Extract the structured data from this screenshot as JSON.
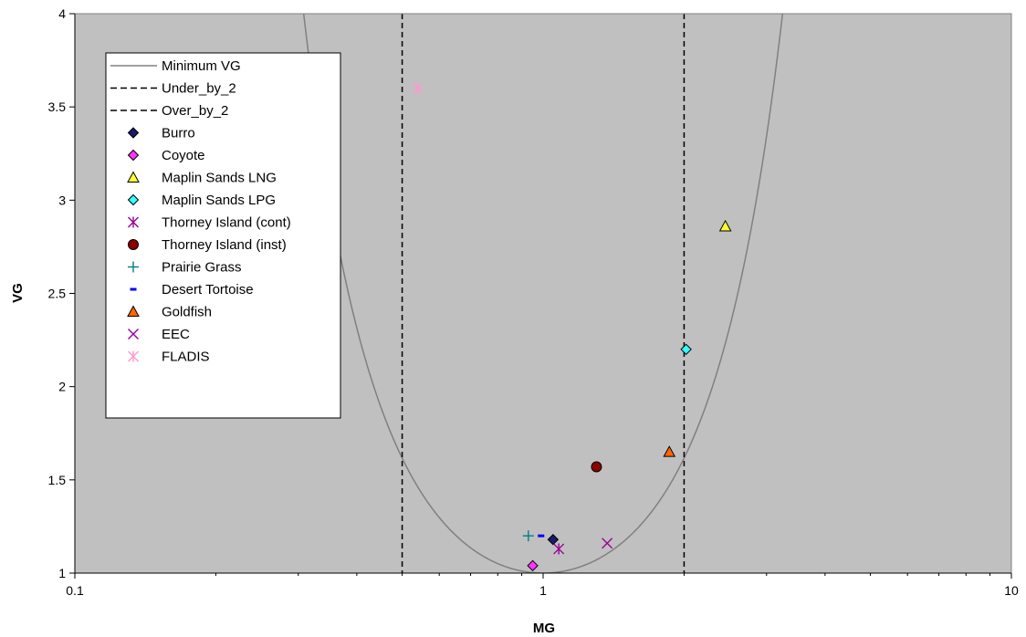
{
  "chart_data": {
    "type": "scatter",
    "title": "",
    "xlabel": "MG",
    "ylabel": "VG",
    "x_scale": "log",
    "xlim": [
      0.1,
      10
    ],
    "ylim": [
      1,
      4
    ],
    "x_ticks": [
      0.1,
      1,
      10
    ],
    "x_tick_labels": [
      "0.1",
      "1",
      "10"
    ],
    "y_ticks": [
      1,
      1.5,
      2,
      2.5,
      3,
      3.5,
      4
    ],
    "y_tick_labels": [
      "1",
      "1.5",
      "2",
      "2.5",
      "3",
      "3.5",
      "4"
    ],
    "grid": false,
    "legend_position": "top-left",
    "plot_background": "#c0c0c0",
    "curves": [
      {
        "name": "Minimum VG",
        "kind": "minimum_vg_curve",
        "color": "#808080",
        "style": "solid"
      },
      {
        "name": "Under_by_2",
        "kind": "vertical_line",
        "x": 0.5,
        "color": "#000000",
        "style": "dashed"
      },
      {
        "name": "Over_by_2",
        "kind": "vertical_line",
        "x": 2,
        "color": "#000000",
        "style": "dashed"
      }
    ],
    "series": [
      {
        "name": "Burro",
        "marker": "diamond",
        "color": "#1a1a6e",
        "points": [
          [
            1.05,
            1.18
          ]
        ]
      },
      {
        "name": "Coyote",
        "marker": "diamond",
        "color": "#ff33ff",
        "points": [
          [
            0.95,
            1.04
          ]
        ]
      },
      {
        "name": "Maplin Sands LNG",
        "marker": "triangle",
        "color": "#ffff33",
        "points": [
          [
            2.45,
            2.86
          ]
        ]
      },
      {
        "name": "Maplin Sands LPG",
        "marker": "diamond",
        "color": "#33ffff",
        "points": [
          [
            2.02,
            2.2
          ]
        ]
      },
      {
        "name": "Thorney Island (cont)",
        "marker": "star",
        "color": "#990099",
        "points": [
          [
            1.08,
            1.13
          ]
        ]
      },
      {
        "name": "Thorney Island (inst)",
        "marker": "circle",
        "color": "#8b0000",
        "points": [
          [
            1.3,
            1.57
          ]
        ]
      },
      {
        "name": "Prairie Grass",
        "marker": "plus",
        "color": "#008080",
        "points": [
          [
            0.93,
            1.2
          ]
        ]
      },
      {
        "name": "Desert Tortoise",
        "marker": "dash",
        "color": "#0000ff",
        "points": [
          [
            0.99,
            1.2
          ]
        ]
      },
      {
        "name": "Goldfish",
        "marker": "triangle",
        "color": "#ff6600",
        "points": [
          [
            1.86,
            1.65
          ]
        ]
      },
      {
        "name": "EEC",
        "marker": "x",
        "color": "#990099",
        "points": [
          [
            1.37,
            1.16
          ]
        ]
      },
      {
        "name": "FLADIS",
        "marker": "star",
        "color": "#ff99cc",
        "points": [
          [
            0.54,
            3.6
          ]
        ]
      }
    ]
  }
}
